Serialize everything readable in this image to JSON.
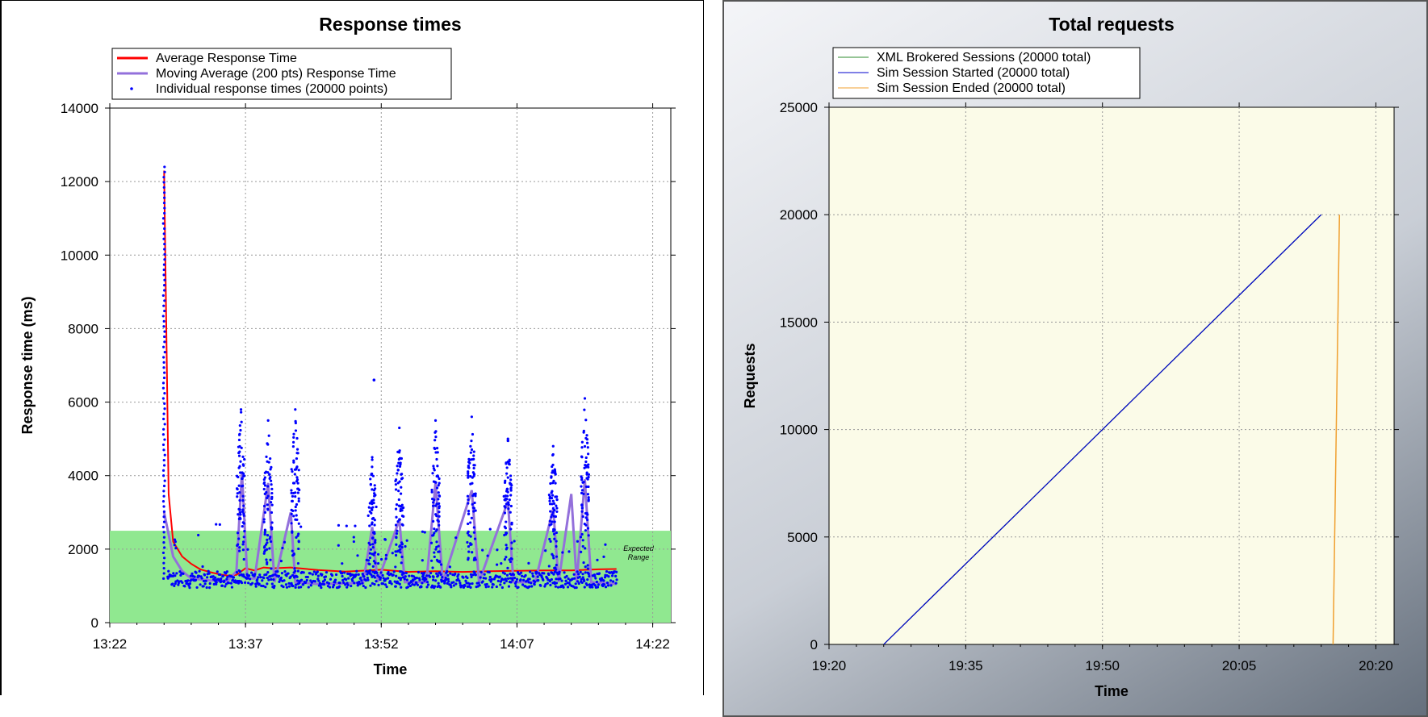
{
  "chart_data": [
    {
      "type": "scatter",
      "title": "Response times",
      "xlabel": "Time",
      "ylabel": "Response time (ms)",
      "x_ticks": [
        "13:22",
        "13:37",
        "13:52",
        "14:07",
        "14:22"
      ],
      "x_range": [
        "13:22",
        "14:24"
      ],
      "y_ticks": [
        0,
        2000,
        4000,
        6000,
        8000,
        10000,
        12000,
        14000
      ],
      "ylim": [
        0,
        14000
      ],
      "grid": true,
      "legend_position": "top-left",
      "expected_range": {
        "label_line1": "Expected",
        "label_line2": "Range",
        "from": 0,
        "to": 2500,
        "color": "#90e890"
      },
      "series": [
        {
          "name": "Average Response Time",
          "kind": "line",
          "color": "#ff0000",
          "points": [
            [
              "13:28",
              12300
            ],
            [
              "13:28.5",
              3500
            ],
            [
              "13:29",
              2200
            ],
            [
              "13:30",
              1800
            ],
            [
              "13:31",
              1600
            ],
            [
              "13:32",
              1450
            ],
            [
              "13:33",
              1380
            ],
            [
              "13:34",
              1320
            ],
            [
              "13:35",
              1280
            ],
            [
              "13:36",
              1300
            ],
            [
              "13:37",
              1480
            ],
            [
              "13:38",
              1420
            ],
            [
              "13:39",
              1500
            ],
            [
              "13:40",
              1480
            ],
            [
              "13:42",
              1500
            ],
            [
              "13:45",
              1430
            ],
            [
              "13:48",
              1390
            ],
            [
              "13:52",
              1440
            ],
            [
              "13:55",
              1380
            ],
            [
              "13:58",
              1400
            ],
            [
              "14:01",
              1380
            ],
            [
              "14:04",
              1400
            ],
            [
              "14:07",
              1410
            ],
            [
              "14:10",
              1420
            ],
            [
              "14:13",
              1420
            ],
            [
              "14:16",
              1450
            ],
            [
              "14:18",
              1460
            ]
          ]
        },
        {
          "name": "Moving Average (200 pts) Response Time",
          "kind": "line",
          "color": "#9370db",
          "points": [
            [
              "13:28",
              3000
            ],
            [
              "13:29",
              1800
            ],
            [
              "13:30",
              1400
            ],
            [
              "13:31",
              1200
            ],
            [
              "13:33",
              1150
            ],
            [
              "13:35",
              1130
            ],
            [
              "13:36",
              1400
            ],
            [
              "13:36.6",
              4100
            ],
            [
              "13:37.2",
              1200
            ],
            [
              "13:38",
              1200
            ],
            [
              "13:39.5",
              3800
            ],
            [
              "13:40.2",
              1100
            ],
            [
              "13:42",
              3000
            ],
            [
              "13:42.5",
              1100
            ],
            [
              "13:45",
              1050
            ],
            [
              "13:50",
              1080
            ],
            [
              "13:51",
              2600
            ],
            [
              "13:51.6",
              1100
            ],
            [
              "13:54",
              2800
            ],
            [
              "13:54.6",
              1100
            ],
            [
              "13:57",
              1100
            ],
            [
              "13:58",
              3800
            ],
            [
              "13:58.8",
              1100
            ],
            [
              "14:02",
              3600
            ],
            [
              "14:02.8",
              1100
            ],
            [
              "14:06",
              3300
            ],
            [
              "14:06.6",
              1100
            ],
            [
              "14:09",
              1100
            ],
            [
              "14:11",
              3100
            ],
            [
              "14:11.6",
              1100
            ],
            [
              "14:13",
              3500
            ],
            [
              "14:13.6",
              1100
            ],
            [
              "14:14.5",
              3900
            ],
            [
              "14:15.2",
              1100
            ],
            [
              "14:18",
              1050
            ]
          ]
        },
        {
          "name": "Individual response times (20000 points)",
          "kind": "scatter",
          "color": "#0000ff",
          "summary": {
            "baseline_min": 950,
            "baseline_max": 1400,
            "initial_spike_max": 12500,
            "outlier_at_13_51": 6600,
            "bursts": [
              {
                "time": "13:28",
                "max": 12500
              },
              {
                "time": "13:36.5",
                "max": 5800
              },
              {
                "time": "13:39.5",
                "max": 5500
              },
              {
                "time": "13:42.5",
                "max": 5800
              },
              {
                "time": "13:51",
                "max": 4500
              },
              {
                "time": "13:54",
                "max": 5300
              },
              {
                "time": "13:58",
                "max": 5500
              },
              {
                "time": "14:02",
                "max": 5600
              },
              {
                "time": "14:06",
                "max": 5000
              },
              {
                "time": "14:11",
                "max": 4800
              },
              {
                "time": "14:14.5",
                "max": 6100
              }
            ]
          }
        }
      ]
    },
    {
      "type": "line",
      "title": "Total requests",
      "xlabel": "Time",
      "ylabel": "Requests",
      "x_ticks": [
        "19:20",
        "19:35",
        "19:50",
        "20:05",
        "20:20"
      ],
      "x_range": [
        "19:20",
        "20:22"
      ],
      "y_ticks": [
        0,
        5000,
        10000,
        15000,
        20000,
        25000
      ],
      "ylim": [
        0,
        25000
      ],
      "grid": true,
      "legend_position": "top-left",
      "series": [
        {
          "name": "XML Brokered Sessions (20000 total)",
          "color": "#2e8b2e",
          "points": [
            [
              "19:26",
              0
            ],
            [
              "20:14",
              20000
            ]
          ]
        },
        {
          "name": "Sim Session Started (20000 total)",
          "color": "#0000cd",
          "points": [
            [
              "19:26",
              0
            ],
            [
              "20:14",
              20000
            ]
          ]
        },
        {
          "name": "Sim Session Ended (20000 total)",
          "color": "#f0a030",
          "points": [
            [
              "20:15.3",
              0
            ],
            [
              "20:16",
              20000
            ]
          ]
        }
      ]
    }
  ]
}
